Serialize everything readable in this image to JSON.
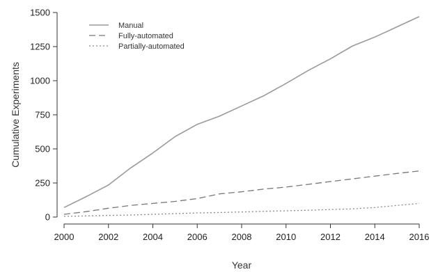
{
  "chart_data": {
    "type": "line",
    "title": "",
    "xlabel": "Year",
    "ylabel": "Cumulative Experiments",
    "xlim": [
      2000,
      2016
    ],
    "ylim": [
      0,
      1500
    ],
    "xticks": [
      2000,
      2002,
      2004,
      2006,
      2008,
      2010,
      2012,
      2014,
      2016
    ],
    "yticks": [
      0,
      250,
      500,
      750,
      1000,
      1250,
      1500
    ],
    "grid": false,
    "legend_position": "top-left",
    "x": [
      2000,
      2001,
      2002,
      2003,
      2004,
      2005,
      2006,
      2007,
      2008,
      2009,
      2010,
      2011,
      2012,
      2013,
      2014,
      2015,
      2016
    ],
    "series": [
      {
        "name": "Manual",
        "line_style": "solid",
        "color": "#9a9a9a",
        "values": [
          70,
          150,
          235,
          360,
          470,
          590,
          680,
          740,
          815,
          890,
          980,
          1075,
          1160,
          1255,
          1320,
          1395,
          1470
        ]
      },
      {
        "name": "Fully-automated",
        "line_style": "dashed",
        "color": "#777777",
        "values": [
          20,
          40,
          65,
          85,
          100,
          115,
          135,
          170,
          185,
          205,
          220,
          240,
          260,
          280,
          300,
          320,
          338
        ]
      },
      {
        "name": "Partially-automated",
        "line_style": "dotted",
        "color": "#888888",
        "values": [
          5,
          8,
          12,
          15,
          20,
          25,
          30,
          33,
          37,
          42,
          46,
          50,
          55,
          60,
          70,
          85,
          100
        ]
      }
    ]
  }
}
